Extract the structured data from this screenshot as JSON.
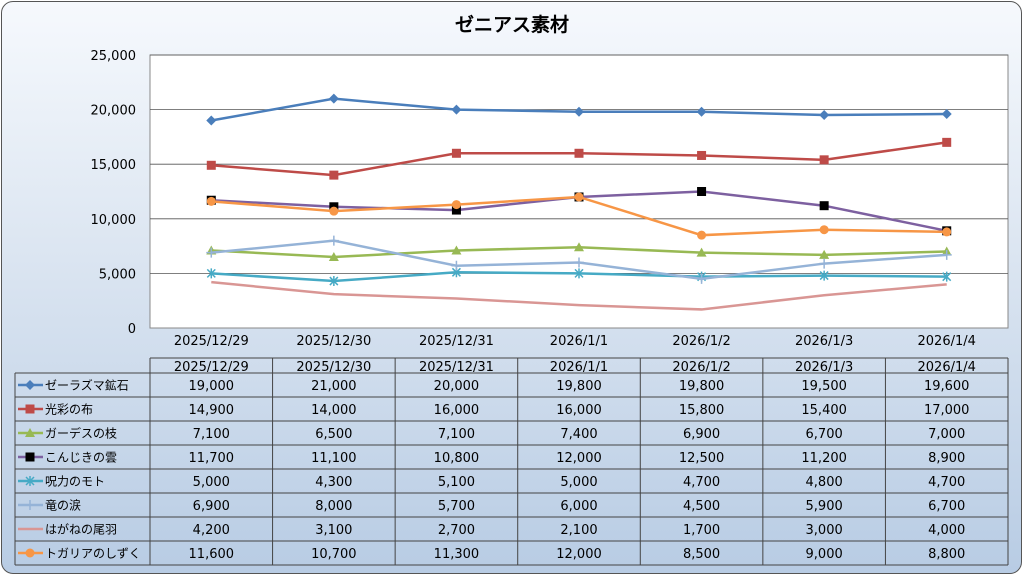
{
  "chart_data": {
    "type": "line",
    "title": "ゼニアス素材",
    "categories": [
      "2025/12/29",
      "2025/12/30",
      "2025/12/31",
      "2026/1/1",
      "2026/1/2",
      "2026/1/3",
      "2026/1/4"
    ],
    "ylim": [
      0,
      25000
    ],
    "yticks": [
      0,
      5000,
      10000,
      15000,
      20000,
      25000
    ],
    "ytick_labels": [
      "0",
      "5,000",
      "10,000",
      "15,000",
      "20,000",
      "25,000"
    ],
    "grid": true,
    "legend": "data-table",
    "series": [
      {
        "name": "ゼーラズマ鉱石",
        "color": "#4a7ebb",
        "marker": "diamond",
        "values": [
          19000,
          21000,
          20000,
          19800,
          19800,
          19500,
          19600
        ],
        "labels": [
          "19,000",
          "21,000",
          "20,000",
          "19,800",
          "19,800",
          "19,500",
          "19,600"
        ]
      },
      {
        "name": "光彩の布",
        "color": "#be4b48",
        "marker": "square",
        "values": [
          14900,
          14000,
          16000,
          16000,
          15800,
          15400,
          17000
        ],
        "labels": [
          "14,900",
          "14,000",
          "16,000",
          "16,000",
          "15,800",
          "15,400",
          "17,000"
        ]
      },
      {
        "name": "ガーデスの枝",
        "color": "#98b954",
        "marker": "triangle",
        "values": [
          7100,
          6500,
          7100,
          7400,
          6900,
          6700,
          7000
        ],
        "labels": [
          "7,100",
          "6,500",
          "7,100",
          "7,400",
          "6,900",
          "6,700",
          "7,000"
        ]
      },
      {
        "name": "こんじきの雲",
        "color": "#7d60a0",
        "marker": "blacksquare",
        "values": [
          11700,
          11100,
          10800,
          12000,
          12500,
          11200,
          8900
        ],
        "labels": [
          "11,700",
          "11,100",
          "10,800",
          "12,000",
          "12,500",
          "11,200",
          "8,900"
        ]
      },
      {
        "name": "呪力のモト",
        "color": "#46aac5",
        "marker": "star",
        "values": [
          5000,
          4300,
          5100,
          5000,
          4700,
          4800,
          4700
        ],
        "labels": [
          "5,000",
          "4,300",
          "5,100",
          "5,000",
          "4,700",
          "4,800",
          "4,700"
        ]
      },
      {
        "name": "竜の涙",
        "color": "#95b3d7",
        "marker": "plus",
        "values": [
          6900,
          8000,
          5700,
          6000,
          4500,
          5900,
          6700
        ],
        "labels": [
          "6,900",
          "8,000",
          "5,700",
          "6,000",
          "4,500",
          "5,900",
          "6,700"
        ]
      },
      {
        "name": "はがねの尾羽",
        "color": "#d99694",
        "marker": "none",
        "values": [
          4200,
          3100,
          2700,
          2100,
          1700,
          3000,
          4000
        ],
        "labels": [
          "4,200",
          "3,100",
          "2,700",
          "2,100",
          "1,700",
          "3,000",
          "4,000"
        ]
      },
      {
        "name": "トガリアのしずく",
        "color": "#f79646",
        "marker": "circle",
        "values": [
          11600,
          10700,
          11300,
          12000,
          8500,
          9000,
          8800
        ],
        "labels": [
          "11,600",
          "10,700",
          "11,300",
          "12,000",
          "8,500",
          "9,000",
          "8,800"
        ]
      }
    ]
  }
}
